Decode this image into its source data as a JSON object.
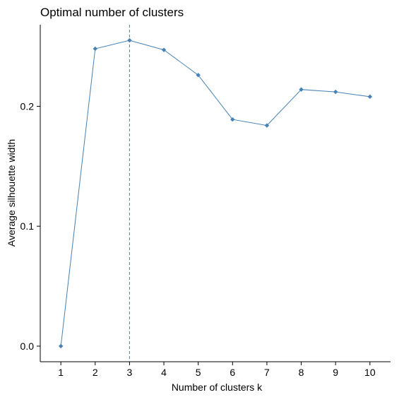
{
  "chart_data": {
    "type": "line",
    "title": "Optimal number of clusters",
    "xlabel": "Number of clusters k",
    "ylabel": "Average silhouette width",
    "x": [
      1,
      2,
      3,
      4,
      5,
      6,
      7,
      8,
      9,
      10
    ],
    "series": [
      {
        "values": [
          0.0,
          0.248,
          0.255,
          0.247,
          0.226,
          0.189,
          0.184,
          0.214,
          0.212,
          0.208
        ]
      }
    ],
    "x_ticks": [
      "1",
      "2",
      "3",
      "4",
      "5",
      "6",
      "7",
      "8",
      "9",
      "10"
    ],
    "y_ticks": [
      "0.0",
      "0.1",
      "0.2"
    ],
    "ylim": [
      -0.013,
      0.268
    ],
    "optimal_k": 3,
    "grid": false,
    "line_color": "#4682B4",
    "vline_color": "#4682B4"
  }
}
